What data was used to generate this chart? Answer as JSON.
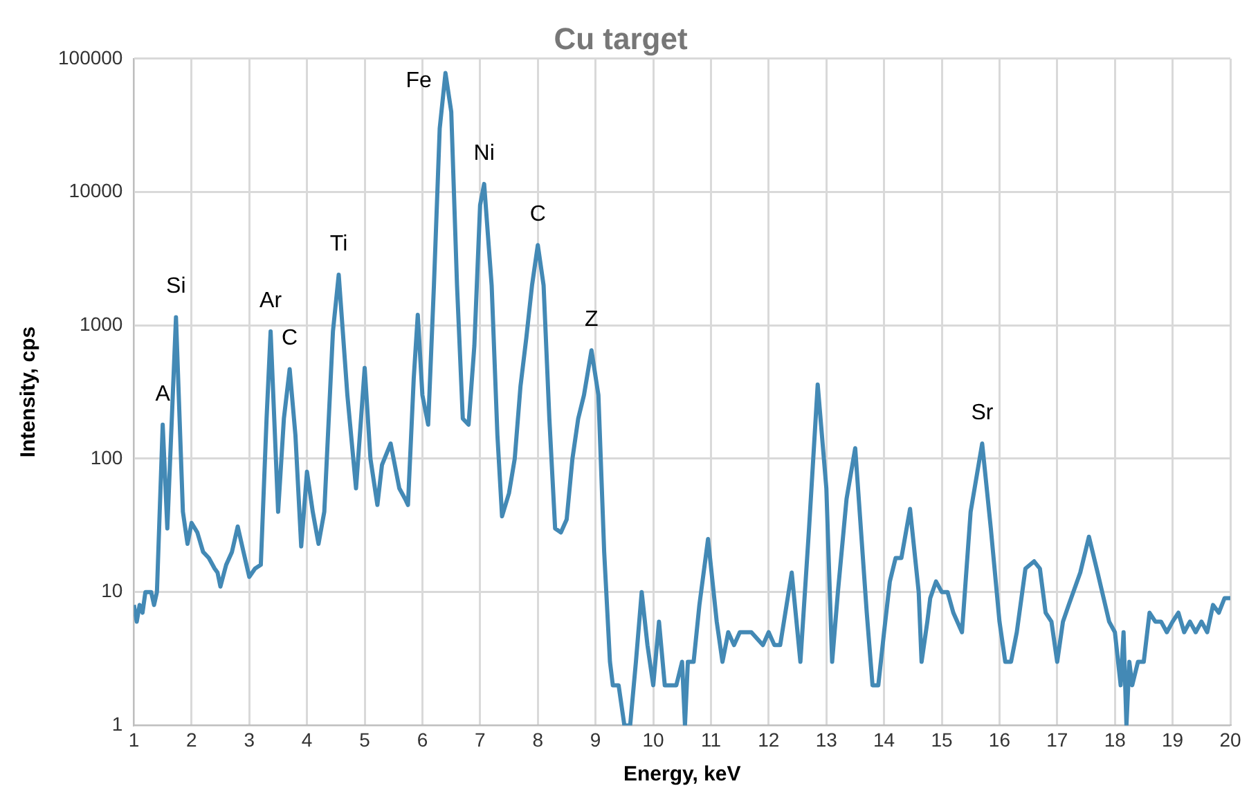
{
  "chart_data": {
    "type": "line",
    "title": "Cu target",
    "xlabel": "Energy, keV",
    "ylabel": "Intensity, cps",
    "log": "y",
    "grid": true,
    "legend": false,
    "marker": "none",
    "line_style": "solid",
    "xlim": [
      1,
      20
    ],
    "xticks": [
      1,
      2,
      3,
      4,
      5,
      6,
      7,
      8,
      9,
      10,
      11,
      12,
      13,
      14,
      15,
      16,
      17,
      18,
      19,
      20
    ],
    "ylim": [
      1,
      100000
    ],
    "yticks": [
      1,
      10,
      100,
      1000,
      10000,
      100000
    ],
    "x": [
      1,
      1.05,
      1.1,
      1.15,
      1.2,
      1.3,
      1.35,
      1.4,
      1.5,
      1.58,
      1.73,
      1.85,
      1.93,
      2,
      2.1,
      2.2,
      2.3,
      2.4,
      2.45,
      2.5,
      2.6,
      2.7,
      2.8,
      2.9,
      3,
      3.1,
      3.2,
      3.3,
      3.37,
      3.5,
      3.6,
      3.7,
      3.8,
      3.9,
      4,
      4.1,
      4.2,
      4.3,
      4.45,
      4.55,
      4.7,
      4.85,
      5,
      5.1,
      5.22,
      5.3,
      5.45,
      5.6,
      5.7,
      5.75,
      5.85,
      5.92,
      6,
      6.1,
      6.2,
      6.3,
      6.4,
      6.5,
      6.6,
      6.7,
      6.8,
      6.9,
      7,
      7.07,
      7.2,
      7.3,
      7.38,
      7.5,
      7.6,
      7.7,
      7.8,
      7.9,
      8,
      8.1,
      8.2,
      8.3,
      8.4,
      8.5,
      8.6,
      8.7,
      8.8,
      8.93,
      9.05,
      9.15,
      9.25,
      9.3,
      9.4,
      9.5,
      9.6,
      9.7,
      9.8,
      9.9,
      10,
      10.1,
      10.2,
      10.3,
      10.4,
      10.5,
      10.55,
      10.6,
      10.7,
      10.8,
      10.95,
      11.1,
      11.2,
      11.3,
      11.4,
      11.5,
      11.7,
      11.9,
      12,
      12.1,
      12.2,
      12.4,
      12.55,
      12.7,
      12.85,
      13,
      13.1,
      13.2,
      13.35,
      13.5,
      13.7,
      13.8,
      13.9,
      14,
      14.1,
      14.2,
      14.3,
      14.45,
      14.6,
      14.65,
      14.75,
      14.8,
      14.9,
      15,
      15.1,
      15.2,
      15.35,
      15.5,
      15.7,
      15.85,
      16,
      16.1,
      16.2,
      16.3,
      16.45,
      16.6,
      16.7,
      16.8,
      16.9,
      17,
      17.1,
      17.2,
      17.4,
      17.55,
      17.7,
      17.9,
      18,
      18.1,
      18.15,
      18.2,
      18.25,
      18.3,
      18.4,
      18.5,
      18.6,
      18.7,
      18.8,
      18.9,
      19,
      19.1,
      19.2,
      19.3,
      19.4,
      19.5,
      19.6,
      19.7,
      19.8,
      19.9,
      20
    ],
    "series": [
      {
        "color": "#4389b5",
        "values": [
          8,
          6,
          8,
          7,
          10,
          10,
          8,
          10,
          180,
          30,
          1150,
          40,
          23,
          33,
          28,
          20,
          18,
          15,
          14,
          11,
          16,
          20,
          31,
          20,
          13,
          15,
          16,
          200,
          900,
          40,
          200,
          470,
          150,
          22,
          80,
          40,
          23,
          40,
          900,
          2400,
          300,
          60,
          480,
          100,
          45,
          90,
          130,
          60,
          50,
          45,
          400,
          1200,
          300,
          180,
          2000,
          30000,
          78000,
          40000,
          2000,
          200,
          180,
          700,
          8000,
          11500,
          2000,
          150,
          37,
          55,
          100,
          350,
          800,
          2000,
          4000,
          2000,
          200,
          30,
          28,
          35,
          100,
          200,
          300,
          650,
          300,
          20,
          3,
          2,
          2,
          1,
          1,
          3,
          10,
          4,
          2,
          6,
          2,
          2,
          2,
          3,
          1,
          3,
          3,
          8,
          25,
          6,
          3,
          5,
          4,
          5,
          5,
          4,
          5,
          4,
          4,
          14,
          3,
          30,
          360,
          60,
          3,
          10,
          50,
          120,
          7,
          2,
          2,
          5,
          12,
          18,
          18,
          42,
          10,
          3,
          6,
          9,
          12,
          10,
          10,
          7,
          5,
          40,
          130,
          30,
          6,
          3,
          3,
          5,
          15,
          17,
          15,
          7,
          6,
          3,
          6,
          8,
          14,
          26,
          14,
          6,
          5,
          2,
          5,
          1,
          3,
          2,
          3,
          3,
          7,
          6,
          6,
          5,
          6,
          7,
          5,
          6,
          5,
          6,
          5,
          8,
          7,
          9,
          9
        ]
      }
    ],
    "annotations": [
      {
        "text": "A",
        "x": 1.5,
        "y": 180
      },
      {
        "text": "Si",
        "x": 1.73,
        "y": 1150
      },
      {
        "text": "Ar",
        "x": 3.37,
        "y": 900
      },
      {
        "text": "C",
        "x": 3.7,
        "y": 470
      },
      {
        "text": "Ti",
        "x": 4.55,
        "y": 2400
      },
      {
        "text": "Fe",
        "x": 6.4,
        "y": 78000
      },
      {
        "text": "Ni",
        "x": 7.07,
        "y": 11500
      },
      {
        "text": "C",
        "x": 8,
        "y": 4000
      },
      {
        "text": "Z",
        "x": 8.93,
        "y": 650
      },
      {
        "text": "Sr",
        "x": 15.7,
        "y": 130
      }
    ]
  }
}
